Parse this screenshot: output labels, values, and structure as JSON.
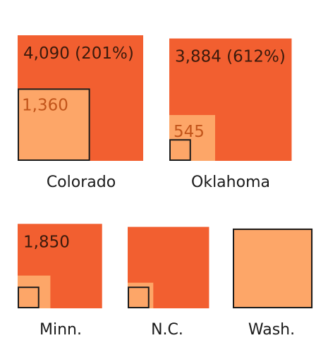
{
  "colors": {
    "large": "#f25f30",
    "small": "#fda668",
    "outline": "#1a1a1a",
    "large_label": "#3b1a0c",
    "small_label": "#c2541a"
  },
  "chart_data": {
    "type": "proportional-square",
    "panels": [
      {
        "name": "Colorado",
        "large_value": 4090,
        "large_label": "4,090 (201%)",
        "small_value": 1360,
        "small_label": "1,360",
        "small_color": "outline",
        "outlined_value": 1360
      },
      {
        "name": "Oklahoma",
        "large_value": 3884,
        "large_label": "3,884 (612%)",
        "small_value": 545,
        "small_label": "545",
        "outlined_value": 122
      },
      {
        "name": "Minn.",
        "large_value": 1850,
        "large_label": "1,850",
        "small_value": 278,
        "small_label": "",
        "outlined_value": 122
      },
      {
        "name": "N.C.",
        "large_value": 1720,
        "large_label": "",
        "small_value": 170,
        "small_label": "",
        "outlined_value": 122
      },
      {
        "name": "Wash.",
        "large_value": 1650,
        "large_label": "",
        "small_value": 1650,
        "small_label": "",
        "outlined_value": 1650
      }
    ]
  }
}
